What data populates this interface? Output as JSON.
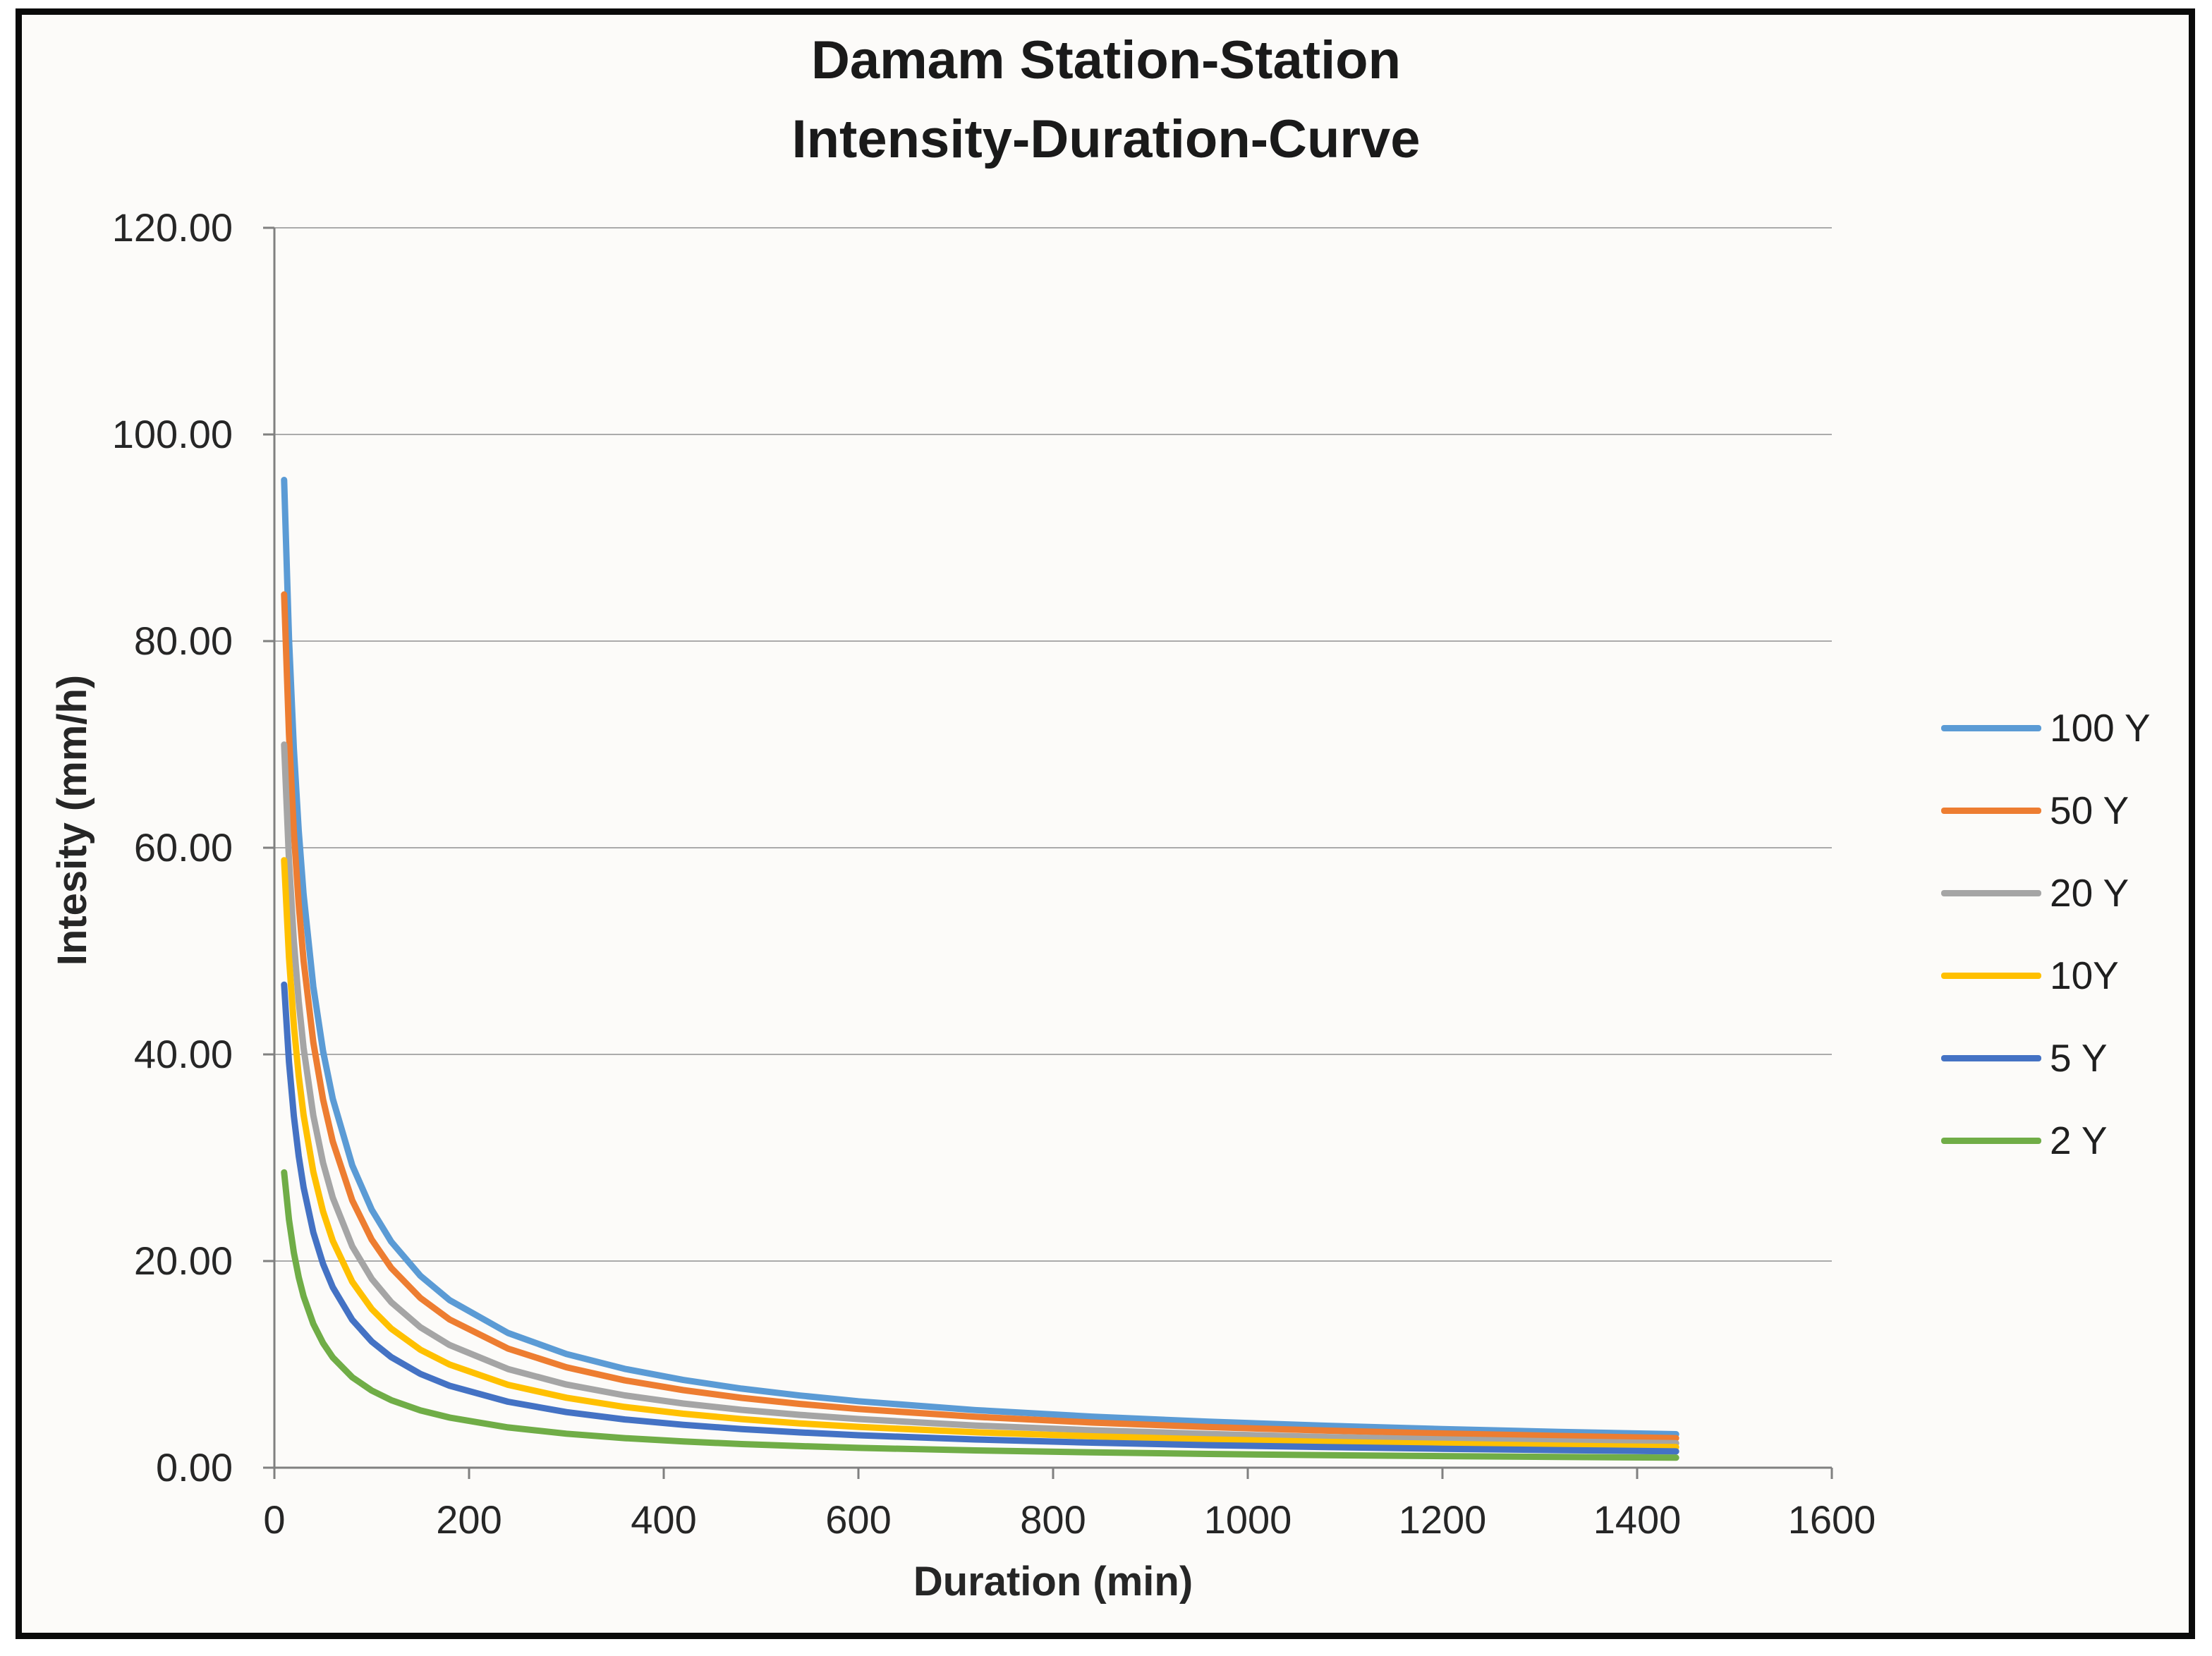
{
  "figure": {
    "title_line1": "Damam Station-Station",
    "title_line2": "Intensity-Duration-Curve"
  },
  "axes": {
    "x_label": "Duration (min)",
    "y_label": "Intesity (mm/h)",
    "x_tick_labels": [
      "0",
      "200",
      "400",
      "600",
      "800",
      "1000",
      "1200",
      "1400",
      "1600"
    ],
    "x_tick_values": [
      0,
      200,
      400,
      600,
      800,
      1000,
      1200,
      1400,
      1600
    ],
    "y_tick_labels": [
      "120.00",
      "100.00",
      "80.00",
      "60.00",
      "40.00",
      "20.00",
      "0.00"
    ],
    "y_tick_values": [
      120,
      100,
      80,
      60,
      40,
      20,
      0
    ]
  },
  "legend": {
    "position": "right-middle",
    "items": [
      {
        "label": "100 Y",
        "color": "#5B9BD5"
      },
      {
        "label": "50 Y",
        "color": "#ED7D31"
      },
      {
        "label": "20 Y",
        "color": "#A5A5A5"
      },
      {
        "label": "10Y",
        "color": "#FFC000"
      },
      {
        "label": "5 Y",
        "color": "#4472C4"
      },
      {
        "label": "2 Y",
        "color": "#70AD47"
      }
    ]
  },
  "colors": {
    "grid": "#ababab",
    "axis": "#808080",
    "tick_text": "#262626",
    "title_text": "#1a1a1a",
    "frame": "#0a0a0a",
    "background": "#fcfbf9"
  },
  "chart_data": {
    "type": "line",
    "title": "Damam Station-Station Intensity-Duration-Curve",
    "xlabel": "Duration (min)",
    "ylabel": "Intesity (mm/h)",
    "xlim": [
      0,
      1600
    ],
    "ylim": [
      0,
      120
    ],
    "grid": "horizontal-only",
    "legend_position": "right-middle",
    "x": [
      10,
      15,
      20,
      25,
      30,
      40,
      50,
      60,
      80,
      100,
      120,
      150,
      180,
      240,
      300,
      360,
      420,
      480,
      540,
      600,
      720,
      840,
      960,
      1080,
      1200,
      1320,
      1440
    ],
    "series": [
      {
        "name": "100 Y",
        "color": "#5B9BD5",
        "values": [
          95.6,
          80.28,
          69.59,
          61.65,
          55.49,
          46.56,
          40.32,
          35.7,
          29.26,
          24.97,
          21.88,
          18.57,
          16.22,
          13.04,
          11.0,
          9.56,
          8.49,
          7.65,
          6.98,
          6.43,
          5.58,
          4.94,
          4.45,
          4.06,
          3.74,
          3.47,
          3.24
        ]
      },
      {
        "name": "50 Y",
        "color": "#ED7D31",
        "values": [
          84.51,
          70.97,
          61.52,
          54.5,
          49.05,
          41.16,
          35.64,
          31.56,
          25.87,
          22.07,
          19.34,
          16.42,
          14.34,
          11.53,
          9.72,
          8.45,
          7.51,
          6.76,
          6.17,
          5.68,
          4.93,
          4.37,
          3.93,
          3.59,
          3.31,
          3.07,
          2.86
        ]
      },
      {
        "name": "20 Y",
        "color": "#A5A5A5",
        "values": [
          69.98,
          58.76,
          50.94,
          45.13,
          40.62,
          34.08,
          29.51,
          26.13,
          21.42,
          18.28,
          16.02,
          13.59,
          11.87,
          9.55,
          8.05,
          7.0,
          6.21,
          5.6,
          5.11,
          4.71,
          4.08,
          3.62,
          3.26,
          2.97,
          2.74,
          2.54,
          2.37
        ]
      },
      {
        "name": "10Y",
        "color": "#FFC000",
        "values": [
          58.79,
          49.37,
          42.8,
          37.91,
          34.13,
          28.63,
          24.8,
          21.96,
          17.99,
          15.36,
          13.46,
          11.42,
          9.98,
          8.02,
          6.77,
          5.88,
          5.22,
          4.7,
          4.29,
          3.95,
          3.43,
          3.04,
          2.74,
          2.5,
          2.3,
          2.13,
          1.99
        ]
      },
      {
        "name": "5 Y",
        "color": "#4472C4",
        "values": [
          46.75,
          39.26,
          34.03,
          30.15,
          27.13,
          22.77,
          19.72,
          17.46,
          14.31,
          12.21,
          10.7,
          9.08,
          7.93,
          6.38,
          5.38,
          4.67,
          4.15,
          3.74,
          3.41,
          3.14,
          2.73,
          2.42,
          2.18,
          1.99,
          1.83,
          1.7,
          1.58
        ]
      },
      {
        "name": "2 Y",
        "color": "#70AD47",
        "values": [
          28.58,
          24.0,
          20.81,
          18.43,
          16.59,
          13.92,
          12.06,
          10.67,
          8.75,
          7.47,
          6.54,
          5.55,
          4.85,
          3.9,
          3.29,
          2.86,
          2.54,
          2.29,
          2.09,
          1.92,
          1.67,
          1.48,
          1.33,
          1.21,
          1.12,
          1.04,
          0.97
        ]
      }
    ]
  }
}
